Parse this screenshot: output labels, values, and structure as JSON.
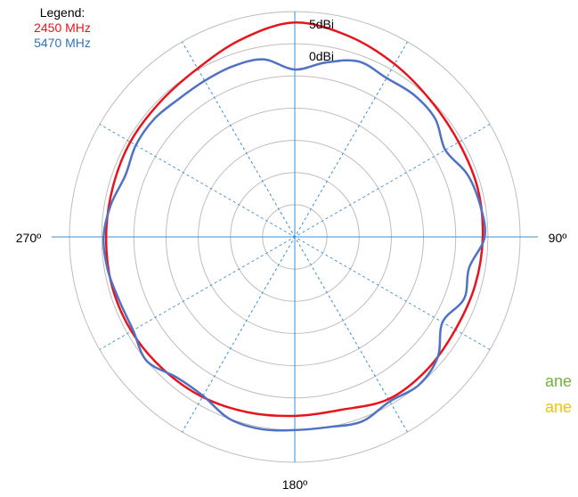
{
  "colors": {
    "series_2450": "#e8141c",
    "series_5470": "#4f72c4",
    "grid_circle": "#bdbdbd",
    "axis_line": "#3b8fd0",
    "plane_green": "#6fb43f",
    "plane_yellow": "#f5c400"
  },
  "legend": {
    "title": "Legend:",
    "items": [
      {
        "label": "2450 MHz",
        "color": "#e8141c"
      },
      {
        "label": "5470 MHz",
        "color": "#2e75b6"
      }
    ]
  },
  "side_labels": [
    {
      "text": "ane",
      "color": "#6fb43f"
    },
    {
      "text": "ane",
      "color": "#f5c400"
    }
  ],
  "chart_data": {
    "type": "polar-line",
    "r_range_dBi": [
      -30,
      5
    ],
    "ring_step_dBi": 5,
    "radial_labels": [
      {
        "value": 5,
        "text": "5dBi"
      },
      {
        "value": 0,
        "text": "0dBi"
      }
    ],
    "angle_labels": [
      {
        "angle": 90,
        "text": "90º"
      },
      {
        "angle": 180,
        "text": "180º"
      },
      {
        "angle": 270,
        "text": "270º"
      }
    ],
    "axes_solid_deg": [
      0,
      90
    ],
    "axes_dashed_deg": [
      30,
      60,
      120,
      150
    ],
    "grid": true,
    "series": [
      {
        "name": "2450 MHz",
        "color": "#e8141c",
        "angles_deg": [
          0,
          15,
          30,
          45,
          60,
          75,
          90,
          105,
          120,
          135,
          150,
          165,
          180,
          195,
          210,
          225,
          240,
          255,
          270,
          285,
          300,
          315,
          330,
          345,
          360
        ],
        "values_dBi": [
          3.3,
          2.3,
          1.0,
          -0.1,
          -0.6,
          -0.6,
          -0.8,
          -1.0,
          -1.2,
          -0.9,
          -0.9,
          -2.2,
          -2.2,
          -1.8,
          -1.3,
          -1.0,
          -0.7,
          -0.6,
          -0.7,
          -0.7,
          -0.5,
          -0.4,
          0.2,
          1.8,
          3.3
        ]
      },
      {
        "name": "5470 MHz",
        "color": "#4f72c4",
        "angles_deg": [
          0,
          10,
          20,
          30,
          40,
          50,
          60,
          70,
          80,
          90,
          100,
          110,
          120,
          130,
          140,
          150,
          160,
          170,
          180,
          190,
          200,
          210,
          220,
          230,
          240,
          250,
          260,
          270,
          280,
          290,
          300,
          310,
          320,
          330,
          340,
          350,
          360
        ],
        "values_dBi": [
          -4.0,
          -2.5,
          -1.0,
          -1.5,
          -1.2,
          -1.5,
          -3.0,
          -1.5,
          -0.8,
          -0.5,
          -2.5,
          -2.0,
          -3.5,
          -1.0,
          0.0,
          -0.5,
          0.5,
          0.0,
          0.0,
          0.3,
          0.0,
          -1.5,
          -1.5,
          0.0,
          -1.0,
          -1.0,
          -0.5,
          -0.3,
          -1.0,
          -2.0,
          -1.5,
          -1.5,
          -2.0,
          -2.0,
          -1.8,
          -2.0,
          -4.0
        ]
      }
    ]
  }
}
